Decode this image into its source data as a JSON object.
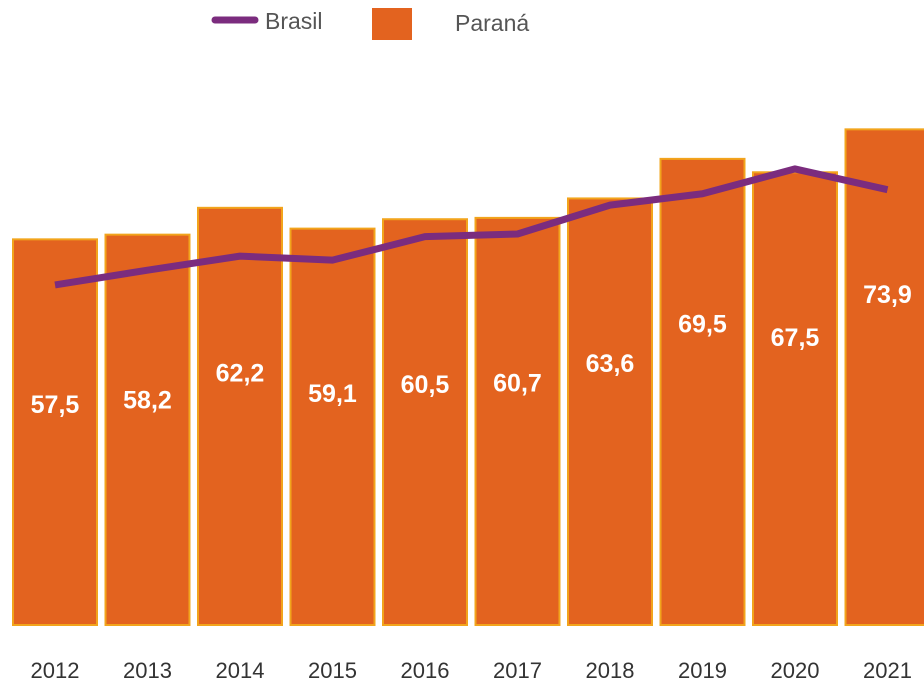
{
  "chart_data": {
    "type": "bar",
    "categories": [
      "2012",
      "2013",
      "2014",
      "2015",
      "2016",
      "2017",
      "2018",
      "2019",
      "2020",
      "2021"
    ],
    "series": [
      {
        "name": "Paraná",
        "type": "bar",
        "color": "#e3631f",
        "values": [
          57.5,
          58.2,
          62.2,
          59.1,
          60.5,
          60.7,
          63.6,
          69.5,
          67.5,
          73.9
        ],
        "value_labels": [
          "57,5",
          "58,2",
          "62,2",
          "59,1",
          "60,5",
          "60,7",
          "63,6",
          "69,5",
          "67,5",
          "73,9"
        ]
      },
      {
        "name": "Brasil",
        "type": "line",
        "color": "#7b2c7e",
        "values": [
          50.7,
          52.9,
          55.0,
          54.4,
          57.9,
          58.3,
          62.6,
          64.3,
          68.0,
          64.9
        ]
      }
    ]
  }
}
